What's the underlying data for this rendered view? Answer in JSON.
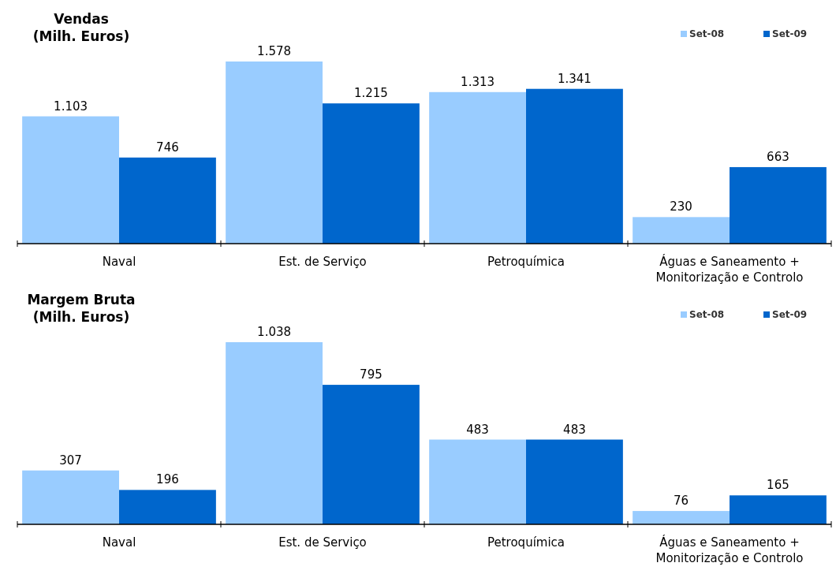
{
  "chart_data": [
    {
      "type": "bar",
      "title": "Vendas",
      "subtitle": "(Milh. Euros)",
      "categories": [
        "Naval",
        "Est. de Serviço",
        "Petroquímica",
        "Águas e Saneamento + Monitorização e Controlo"
      ],
      "series": [
        {
          "name": "Set-08",
          "color": "#99ccff",
          "values": [
            1103,
            1578,
            1313,
            230
          ],
          "value_labels": [
            "1.103",
            "1.578",
            "1.313",
            "230"
          ]
        },
        {
          "name": "Set-09",
          "color": "#0066cc",
          "values": [
            746,
            1215,
            1341,
            663
          ],
          "value_labels": [
            "746",
            "1.215",
            "1.341",
            "663"
          ]
        }
      ],
      "legend": "top right",
      "grid": false
    },
    {
      "type": "bar",
      "title": "Margem Bruta",
      "subtitle": "(Milh. Euros)",
      "categories": [
        "Naval",
        "Est. de Serviço",
        "Petroquímica",
        "Águas e Saneamento + Monitorização e Controlo"
      ],
      "series": [
        {
          "name": "Set-08",
          "color": "#99ccff",
          "values": [
            307,
            1038,
            483,
            76
          ],
          "value_labels": [
            "307",
            "1.038",
            "483",
            "76"
          ]
        },
        {
          "name": "Set-09",
          "color": "#0066cc",
          "values": [
            196,
            795,
            483,
            165
          ],
          "value_labels": [
            "196",
            "795",
            "483",
            "165"
          ]
        }
      ],
      "legend": "top right",
      "grid": false
    }
  ]
}
